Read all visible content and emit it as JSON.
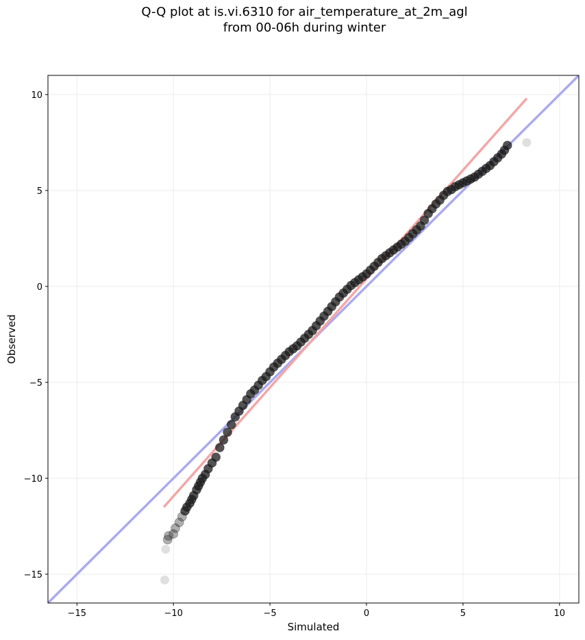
{
  "chart_data": {
    "type": "scatter",
    "title": "Q-Q plot at is.vi.6310 for air_temperature_at_2m_agl",
    "subtitle": "from 00-06h during winter",
    "xlabel": "Simulated",
    "ylabel": "Observed",
    "xlim": [
      -16.5,
      11
    ],
    "ylim": [
      -16.5,
      11
    ],
    "xticks": [
      -15,
      -10,
      -5,
      0,
      5,
      10
    ],
    "yticks": [
      -15,
      -10,
      -5,
      0,
      5,
      10
    ],
    "xtick_labels": [
      "−15",
      "−10",
      "−5",
      "0",
      "5",
      "10"
    ],
    "ytick_labels": [
      "−15",
      "−10",
      "−5",
      "0",
      "5",
      "10"
    ],
    "grid": true,
    "reference_line": {
      "x": [
        -16.5,
        11
      ],
      "y": [
        -16.5,
        11
      ],
      "color": "#aaaaf0"
    },
    "fit_line": {
      "x": [
        -10.5,
        8.3
      ],
      "y": [
        -11.5,
        9.8
      ],
      "color": "#f4a6a6"
    },
    "points": {
      "color": "#1a1a1a",
      "outlier_color": "#dddddd",
      "x": [
        -10.45,
        -10.4,
        -10.3,
        -10.25,
        -10.0,
        -9.9,
        -9.7,
        -9.55,
        -9.4,
        -9.3,
        -9.15,
        -9.05,
        -8.95,
        -8.8,
        -8.7,
        -8.6,
        -8.5,
        -8.35,
        -8.2,
        -8.0,
        -7.8,
        -7.6,
        -7.4,
        -7.2,
        -7.0,
        -6.8,
        -6.6,
        -6.4,
        -6.2,
        -6.0,
        -5.8,
        -5.6,
        -5.4,
        -5.2,
        -5.0,
        -4.8,
        -4.6,
        -4.4,
        -4.2,
        -4.0,
        -3.8,
        -3.6,
        -3.4,
        -3.2,
        -3.0,
        -2.8,
        -2.6,
        -2.4,
        -2.2,
        -2.0,
        -1.8,
        -1.6,
        -1.4,
        -1.2,
        -1.0,
        -0.8,
        -0.6,
        -0.4,
        -0.2,
        0.0,
        0.2,
        0.4,
        0.6,
        0.8,
        1.0,
        1.2,
        1.4,
        1.6,
        1.8,
        2.0,
        2.2,
        2.4,
        2.6,
        2.8,
        3.0,
        3.2,
        3.4,
        3.6,
        3.8,
        4.0,
        4.2,
        4.4,
        4.6,
        4.8,
        5.0,
        5.2,
        5.4,
        5.6,
        5.8,
        6.0,
        6.2,
        6.4,
        6.6,
        6.8,
        7.0,
        7.15,
        7.3,
        8.3
      ],
      "y": [
        -15.3,
        -13.7,
        -13.2,
        -13.0,
        -12.9,
        -12.6,
        -12.3,
        -12.0,
        -11.7,
        -11.5,
        -11.3,
        -11.1,
        -10.9,
        -10.6,
        -10.4,
        -10.2,
        -10.0,
        -9.8,
        -9.5,
        -9.2,
        -8.9,
        -8.4,
        -8.0,
        -7.6,
        -7.2,
        -6.8,
        -6.5,
        -6.2,
        -5.9,
        -5.6,
        -5.4,
        -5.15,
        -4.9,
        -4.7,
        -4.45,
        -4.2,
        -4.0,
        -3.8,
        -3.6,
        -3.4,
        -3.25,
        -3.1,
        -2.9,
        -2.7,
        -2.5,
        -2.3,
        -2.05,
        -1.8,
        -1.55,
        -1.3,
        -1.05,
        -0.8,
        -0.55,
        -0.35,
        -0.15,
        0.05,
        0.2,
        0.35,
        0.5,
        0.65,
        0.85,
        1.05,
        1.25,
        1.45,
        1.6,
        1.75,
        1.9,
        2.05,
        2.2,
        2.35,
        2.55,
        2.75,
        2.95,
        3.15,
        3.45,
        3.8,
        4.05,
        4.3,
        4.5,
        4.75,
        4.95,
        5.05,
        5.2,
        5.3,
        5.4,
        5.5,
        5.6,
        5.7,
        5.85,
        6.0,
        6.15,
        6.3,
        6.5,
        6.7,
        6.9,
        7.1,
        7.35,
        7.5
      ]
    }
  }
}
